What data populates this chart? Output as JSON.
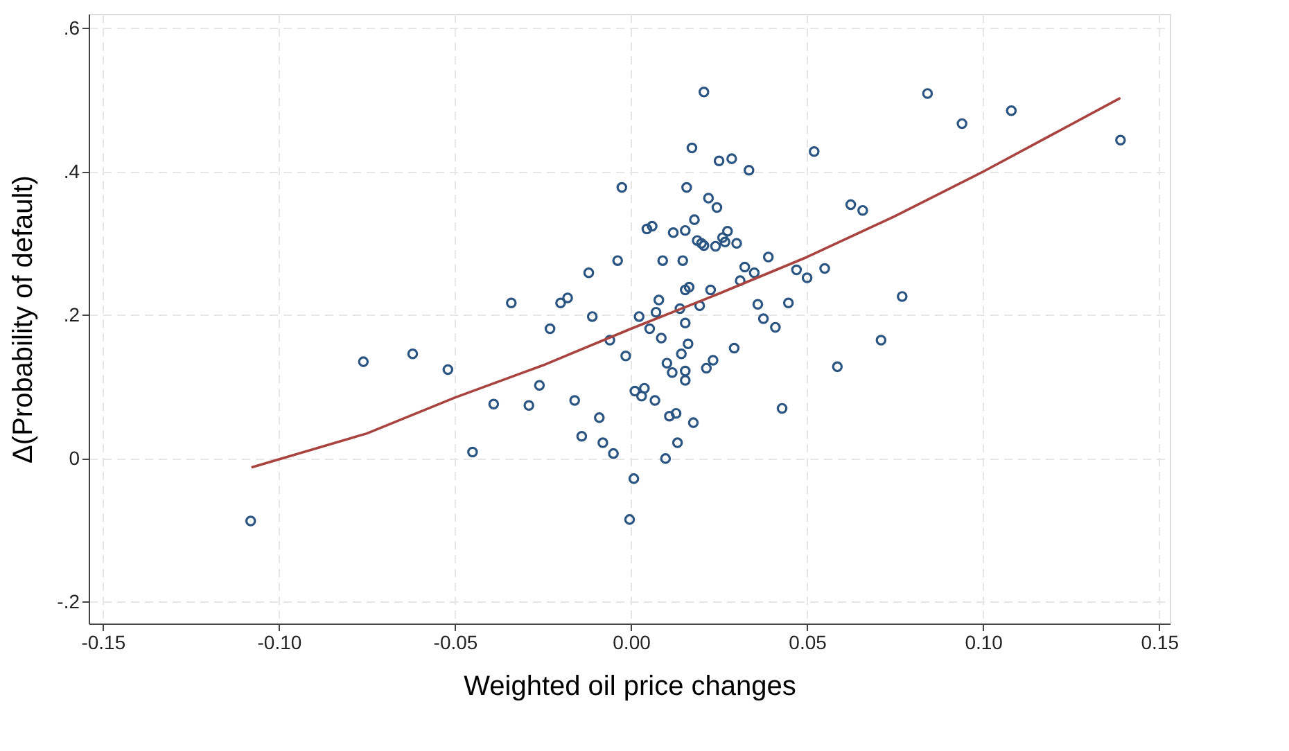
{
  "chart_data": {
    "type": "scatter",
    "xlabel": "Weighted oil price changes",
    "ylabel": "Δ(Probability of default)",
    "xlim": [
      -0.154,
      0.153
    ],
    "ylim": [
      -0.23,
      0.62
    ],
    "xticks": [
      {
        "value": -0.15,
        "label": "-0.15"
      },
      {
        "value": -0.1,
        "label": "-0.10"
      },
      {
        "value": -0.05,
        "label": "-0.05"
      },
      {
        "value": 0,
        "label": "0.00"
      },
      {
        "value": 0.05,
        "label": "0.05"
      },
      {
        "value": 0.1,
        "label": "0.10"
      },
      {
        "value": 0.15,
        "label": "0.15"
      }
    ],
    "yticks": [
      {
        "value": -0.2,
        "label": "-.2"
      },
      0,
      {
        "value": 0.2,
        "label": ".2"
      },
      {
        "value": 0.4,
        "label": ".4"
      },
      {
        "value": 0.6,
        "label": ".6"
      }
    ],
    "grid": true,
    "series": [
      {
        "marker": "circle",
        "color": "#2a5582",
        "x": [
          -0.108,
          -0.076,
          -0.062,
          -0.052,
          -0.045,
          -0.039,
          -0.034,
          -0.029,
          -0.026,
          -0.023,
          -0.02,
          -0.018,
          -0.012,
          -0.011,
          -0.016,
          -0.009,
          -0.014,
          -0.008,
          -0.006,
          -0.005,
          0.0207,
          0.0173,
          0.025,
          0.0286,
          0.0335,
          0.052,
          -0.0026,
          0.0158,
          0.022,
          0.0244,
          0.018,
          0.0045,
          0.006,
          0.012,
          0.0154,
          0.0188,
          0.02,
          0.0207,
          0.024,
          0.026,
          0.0274,
          0.0267,
          0.03,
          0.0624,
          0.0658,
          -0.0038,
          0.009,
          0.0147,
          0.039,
          0.0323,
          0.031,
          0.035,
          0.047,
          0.05,
          0.055,
          0.0154,
          0.0165,
          0.0226,
          -0.0015,
          0.0023,
          0.0053,
          0.0071,
          0.0079,
          0.0139,
          0.0154,
          0.0086,
          0.0162,
          0.0143,
          0.0102,
          0.0117,
          0.0154,
          0.0154,
          0.0214,
          0.0233,
          0.0293,
          0.0195,
          0.036,
          0.0376,
          0.041,
          0.0447,
          0.0586,
          0.0429,
          0.0011,
          0.0038,
          0.003,
          0.0068,
          0.0109,
          0.0128,
          0.0177,
          0.0132,
          0.0098,
          0.0008,
          -0.0004,
          0.0842,
          0.094,
          0.108,
          0.139,
          0.077,
          0.071
        ],
        "values": [
          -0.087,
          0.135,
          0.146,
          0.124,
          0.009,
          0.076,
          0.217,
          0.074,
          0.102,
          0.181,
          0.217,
          0.224,
          0.259,
          0.198,
          0.081,
          0.057,
          0.031,
          0.022,
          0.165,
          0.007,
          0.511,
          0.433,
          0.415,
          0.418,
          0.402,
          0.428,
          0.378,
          0.378,
          0.363,
          0.35,
          0.333,
          0.32,
          0.324,
          0.315,
          0.318,
          0.304,
          0.3,
          0.297,
          0.296,
          0.308,
          0.317,
          0.302,
          0.3,
          0.354,
          0.346,
          0.276,
          0.276,
          0.276,
          0.281,
          0.267,
          0.248,
          0.259,
          0.263,
          0.252,
          0.265,
          0.235,
          0.239,
          0.235,
          0.143,
          0.198,
          0.181,
          0.204,
          0.221,
          0.209,
          0.189,
          0.168,
          0.16,
          0.146,
          0.133,
          0.12,
          0.122,
          0.109,
          0.126,
          0.137,
          0.154,
          0.213,
          0.215,
          0.195,
          0.183,
          0.217,
          0.128,
          0.07,
          0.094,
          0.098,
          0.087,
          0.081,
          0.059,
          0.063,
          0.05,
          0.022,
          0.0,
          -0.028,
          -0.085,
          0.509,
          0.467,
          0.485,
          0.444,
          0.226,
          0.165
        ]
      },
      {
        "type": "line",
        "marker": "none",
        "line_style": "solid",
        "color": "#a8433f",
        "x": [
          -0.1075,
          -0.075,
          -0.05,
          -0.025,
          0,
          0.025,
          0.05,
          0.075,
          0.1,
          0.1387
        ],
        "values": [
          -0.012,
          0.035,
          0.085,
          0.13,
          0.181,
          0.23,
          0.281,
          0.338,
          0.4,
          0.502
        ]
      }
    ]
  }
}
